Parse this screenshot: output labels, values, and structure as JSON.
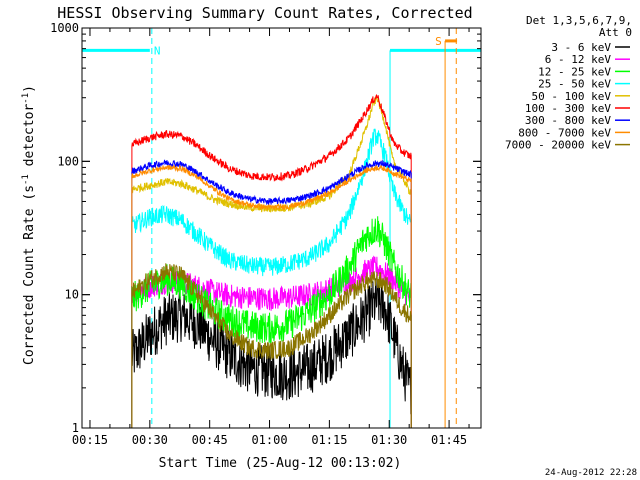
{
  "chart_data": {
    "type": "line",
    "title": "HESSI Observing Summary Count Rates, Corrected",
    "xlabel": "Start Time (25-Aug-12 00:13:02)",
    "ylabel_main": "Corrected Count Rate (s",
    "ylabel_sup1": "-1",
    "ylabel_mid": " detector",
    "ylabel_sup2": "-1",
    "ylabel_end": ")",
    "yscale": "log",
    "ylim": [
      1,
      1000
    ],
    "xlim": [
      13.0,
      113.0
    ],
    "x_unit": "minutes after 00:00 UT",
    "xticks": [
      {
        "x": 15,
        "label": "00:15"
      },
      {
        "x": 30,
        "label": "00:30"
      },
      {
        "x": 45,
        "label": "00:45"
      },
      {
        "x": 60,
        "label": "01:00"
      },
      {
        "x": 75,
        "label": "01:15"
      },
      {
        "x": 90,
        "label": "01:30"
      },
      {
        "x": 105,
        "label": "01:45"
      }
    ],
    "yticks": [
      {
        "y": 1,
        "label": "1"
      },
      {
        "y": 10,
        "label": "10"
      },
      {
        "y": 100,
        "label": "100"
      },
      {
        "y": 1000,
        "label": "1000"
      }
    ],
    "legend": {
      "placement": "right-outside",
      "header_line1": "Det 1,3,5,6,7,9,",
      "header_line2": "Att 0"
    },
    "series": [
      {
        "name": "3 - 6 keV",
        "color": "#000000",
        "noise": 0.2,
        "points": [
          [
            26,
            3.5
          ],
          [
            30,
            5.0
          ],
          [
            34,
            6.5
          ],
          [
            38,
            7.0
          ],
          [
            42,
            6.0
          ],
          [
            46,
            4.5
          ],
          [
            50,
            3.5
          ],
          [
            55,
            2.8
          ],
          [
            60,
            2.6
          ],
          [
            65,
            2.5
          ],
          [
            70,
            2.8
          ],
          [
            75,
            3.5
          ],
          [
            80,
            5.0
          ],
          [
            84,
            7.0
          ],
          [
            87,
            9.0
          ],
          [
            89,
            8.0
          ],
          [
            91,
            5.0
          ],
          [
            93,
            3.0
          ],
          [
            95,
            2.0
          ]
        ]
      },
      {
        "name": "6 - 12 keV",
        "color": "#ff00ff",
        "noise": 0.09,
        "points": [
          [
            26,
            10.5
          ],
          [
            30,
            11.5
          ],
          [
            34,
            12.5
          ],
          [
            38,
            12.5
          ],
          [
            42,
            11.5
          ],
          [
            46,
            10.5
          ],
          [
            50,
            9.8
          ],
          [
            55,
            9.5
          ],
          [
            60,
            9.3
          ],
          [
            65,
            9.5
          ],
          [
            70,
            10.0
          ],
          [
            75,
            11.0
          ],
          [
            80,
            12.5
          ],
          [
            84,
            15.0
          ],
          [
            87,
            16.0
          ],
          [
            89,
            14.5
          ],
          [
            91,
            13.0
          ],
          [
            93,
            11.0
          ],
          [
            95,
            9.5
          ]
        ]
      },
      {
        "name": "12 - 25 keV",
        "color": "#00ff00",
        "noise": 0.12,
        "points": [
          [
            26,
            9.5
          ],
          [
            30,
            11.5
          ],
          [
            34,
            13.0
          ],
          [
            38,
            12.0
          ],
          [
            42,
            9.5
          ],
          [
            46,
            7.5
          ],
          [
            50,
            6.5
          ],
          [
            55,
            5.8
          ],
          [
            60,
            5.6
          ],
          [
            65,
            6.0
          ],
          [
            70,
            7.5
          ],
          [
            75,
            10.0
          ],
          [
            80,
            16.0
          ],
          [
            84,
            27.0
          ],
          [
            87,
            32.0
          ],
          [
            89,
            24.0
          ],
          [
            91,
            17.0
          ],
          [
            93,
            13.0
          ],
          [
            95,
            10.0
          ]
        ]
      },
      {
        "name": "25 - 50 keV",
        "color": "#00ffff",
        "noise": 0.07,
        "points": [
          [
            26,
            33
          ],
          [
            30,
            38
          ],
          [
            34,
            40
          ],
          [
            38,
            36
          ],
          [
            42,
            28
          ],
          [
            46,
            22
          ],
          [
            50,
            18
          ],
          [
            55,
            16.5
          ],
          [
            60,
            16
          ],
          [
            65,
            17
          ],
          [
            70,
            19
          ],
          [
            75,
            24
          ],
          [
            80,
            40
          ],
          [
            84,
            90
          ],
          [
            86,
            150
          ],
          [
            87,
            155
          ],
          [
            89,
            110
          ],
          [
            91,
            60
          ],
          [
            93,
            45
          ],
          [
            95,
            35
          ]
        ]
      },
      {
        "name": "50 - 100 keV",
        "color": "#e0c000",
        "noise": 0.03,
        "points": [
          [
            26,
            62
          ],
          [
            30,
            66
          ],
          [
            34,
            70
          ],
          [
            38,
            68
          ],
          [
            42,
            60
          ],
          [
            46,
            52
          ],
          [
            50,
            48
          ],
          [
            55,
            45
          ],
          [
            60,
            44
          ],
          [
            65,
            45
          ],
          [
            70,
            48
          ],
          [
            75,
            55
          ],
          [
            80,
            80
          ],
          [
            84,
            170
          ],
          [
            86,
            270
          ],
          [
            87,
            300
          ],
          [
            89,
            190
          ],
          [
            91,
            100
          ],
          [
            93,
            80
          ],
          [
            95,
            60
          ]
        ]
      },
      {
        "name": "100 - 300 keV",
        "color": "#ff0000",
        "noise": 0.03,
        "points": [
          [
            26,
            135
          ],
          [
            30,
            150
          ],
          [
            34,
            160
          ],
          [
            38,
            155
          ],
          [
            42,
            130
          ],
          [
            46,
            105
          ],
          [
            50,
            88
          ],
          [
            55,
            78
          ],
          [
            60,
            76
          ],
          [
            65,
            78
          ],
          [
            70,
            90
          ],
          [
            75,
            110
          ],
          [
            80,
            150
          ],
          [
            84,
            230
          ],
          [
            86,
            290
          ],
          [
            87,
            310
          ],
          [
            89,
            210
          ],
          [
            91,
            140
          ],
          [
            93,
            120
          ],
          [
            95,
            110
          ]
        ]
      },
      {
        "name": "300 - 800 keV",
        "color": "#0000ff",
        "noise": 0.025,
        "points": [
          [
            26,
            85
          ],
          [
            30,
            93
          ],
          [
            34,
            98
          ],
          [
            38,
            95
          ],
          [
            42,
            82
          ],
          [
            46,
            68
          ],
          [
            50,
            58
          ],
          [
            55,
            52
          ],
          [
            60,
            50
          ],
          [
            65,
            51
          ],
          [
            70,
            55
          ],
          [
            75,
            63
          ],
          [
            80,
            78
          ],
          [
            84,
            92
          ],
          [
            87,
            97
          ],
          [
            89,
            95
          ],
          [
            91,
            90
          ],
          [
            93,
            85
          ],
          [
            95,
            80
          ]
        ]
      },
      {
        "name": "800 - 7000 keV",
        "color": "#ff8c00",
        "noise": 0.02,
        "points": [
          [
            26,
            78
          ],
          [
            30,
            85
          ],
          [
            34,
            90
          ],
          [
            38,
            88
          ],
          [
            42,
            76
          ],
          [
            46,
            62
          ],
          [
            50,
            52
          ],
          [
            55,
            47
          ],
          [
            60,
            45
          ],
          [
            65,
            46
          ],
          [
            70,
            50
          ],
          [
            75,
            58
          ],
          [
            80,
            72
          ],
          [
            84,
            85
          ],
          [
            87,
            90
          ],
          [
            89,
            88
          ],
          [
            91,
            82
          ],
          [
            93,
            77
          ],
          [
            95,
            72
          ]
        ]
      },
      {
        "name": "7000 - 20000 keV",
        "color": "#8b7500",
        "noise": 0.07,
        "points": [
          [
            26,
            10.5
          ],
          [
            30,
            13
          ],
          [
            34,
            15
          ],
          [
            38,
            14
          ],
          [
            42,
            10
          ],
          [
            46,
            7
          ],
          [
            50,
            5
          ],
          [
            55,
            4.0
          ],
          [
            60,
            3.8
          ],
          [
            65,
            4.0
          ],
          [
            70,
            5.0
          ],
          [
            75,
            7.0
          ],
          [
            80,
            10.0
          ],
          [
            84,
            12.5
          ],
          [
            87,
            13.0
          ],
          [
            89,
            12.0
          ],
          [
            91,
            10.0
          ],
          [
            93,
            8.0
          ],
          [
            95,
            7.0
          ]
        ]
      }
    ],
    "night_intervals": [
      {
        "x0": 13.0,
        "x1": 30.0,
        "y": 680,
        "label": "N",
        "color": "#00ffff"
      },
      {
        "x0": 90.2,
        "x1": 113.0,
        "y": 680,
        "label": "",
        "color": "#00ffff"
      }
    ],
    "night_dashed_markers": [
      30.5
    ],
    "night_solid_markers": [
      90.2
    ],
    "saa_interval": {
      "x0": 104.0,
      "x1": 107.0,
      "y": 800,
      "label": "S",
      "color": "#ff8c00"
    },
    "saa_markers": [
      104.0,
      106.8
    ],
    "data_window": [
      25.5,
      95.5
    ]
  },
  "footer": {
    "timestamp": "24-Aug-2012 22:28"
  }
}
